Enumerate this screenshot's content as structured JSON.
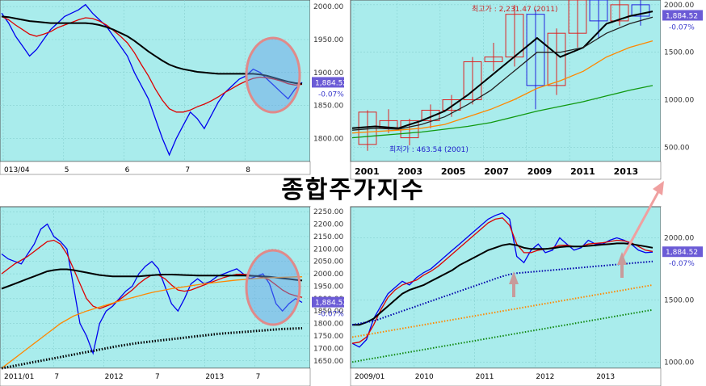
{
  "title": "종합주가지수",
  "colors": {
    "plot_bg": "#a9ecec",
    "axis_bg": "#ffffff",
    "badge": "#6b5bd6",
    "badge_text": "#ffffff",
    "pct_text": "#3b3bcc"
  },
  "chart_data": [
    {
      "type": "line",
      "id": "top-left",
      "x_labels": [
        "013/04",
        "5",
        "6",
        "7",
        "8"
      ],
      "y_ticks": [
        "2000.00",
        "1950.00",
        "1900.00",
        "1850.00",
        "1800.00"
      ],
      "ylim": [
        1765,
        2010
      ],
      "last_value_label": "1,884.52",
      "change_label": "-0.07%",
      "series": [
        {
          "color": "#0000ee",
          "values": [
            1990,
            1975,
            1955,
            1940,
            1925,
            1935,
            1950,
            1965,
            1975,
            1985,
            1990,
            1995,
            2003,
            1990,
            1980,
            1970,
            1955,
            1940,
            1925,
            1900,
            1880,
            1860,
            1830,
            1800,
            1775,
            1800,
            1820,
            1840,
            1830,
            1815,
            1835,
            1855,
            1870,
            1880,
            1890,
            1895,
            1905,
            1900,
            1890,
            1880,
            1870,
            1860,
            1875,
            1885
          ]
        },
        {
          "color": "#dd0000",
          "values": [
            1985,
            1980,
            1972,
            1965,
            1958,
            1955,
            1958,
            1962,
            1968,
            1972,
            1976,
            1980,
            1983,
            1982,
            1978,
            1972,
            1964,
            1955,
            1945,
            1930,
            1912,
            1895,
            1875,
            1858,
            1845,
            1840,
            1840,
            1843,
            1848,
            1852,
            1857,
            1863,
            1870,
            1876,
            1882,
            1887,
            1891,
            1893,
            1892,
            1890,
            1887,
            1883,
            1881,
            1882
          ]
        },
        {
          "color": "#000000",
          "values": [
            1985,
            1984,
            1982,
            1980,
            1978,
            1977,
            1976,
            1975,
            1975,
            1975,
            1975,
            1975,
            1975,
            1974,
            1972,
            1969,
            1965,
            1960,
            1955,
            1948,
            1940,
            1932,
            1925,
            1918,
            1912,
            1908,
            1905,
            1903,
            1901,
            1900,
            1899,
            1898,
            1898,
            1898,
            1898,
            1898,
            1898,
            1897,
            1895,
            1892,
            1889,
            1886,
            1884,
            1883
          ]
        }
      ]
    },
    {
      "type": "candlestick",
      "id": "top-right",
      "x_labels": [
        "2001",
        "2003",
        "2005",
        "2007",
        "2009",
        "2011",
        "2013"
      ],
      "y_ticks": [
        "2000.00",
        "1500.00",
        "1000.00",
        "500.00"
      ],
      "ylim": [
        350,
        2050
      ],
      "last_value_label": "1,884.52",
      "change_label": "-0.07%",
      "annotations": [
        "최고가 : 2,231.47 (2011)",
        "최저가 : 463.54 (2001)"
      ],
      "candles": [
        {
          "o": 530,
          "c": 870,
          "h": 890,
          "l": 463
        },
        {
          "o": 700,
          "c": 780,
          "h": 900,
          "l": 650
        },
        {
          "o": 600,
          "c": 780,
          "h": 800,
          "l": 520
        },
        {
          "o": 780,
          "c": 890,
          "h": 950,
          "l": 700
        },
        {
          "o": 890,
          "c": 1000,
          "h": 1050,
          "l": 820
        },
        {
          "o": 1000,
          "c": 1400,
          "h": 1450,
          "l": 950
        },
        {
          "o": 1400,
          "c": 1450,
          "h": 1600,
          "l": 1300
        },
        {
          "o": 1450,
          "c": 1900,
          "h": 2000,
          "l": 1350
        },
        {
          "o": 1900,
          "c": 1150,
          "h": 1950,
          "l": 900
        },
        {
          "o": 1150,
          "c": 1700,
          "h": 1750,
          "l": 1050
        },
        {
          "o": 1700,
          "c": 2050,
          "h": 2100,
          "l": 1550
        },
        {
          "o": 2050,
          "c": 1830,
          "h": 2231,
          "l": 1650
        },
        {
          "o": 1830,
          "c": 2000,
          "h": 2050,
          "l": 1780
        },
        {
          "o": 2000,
          "c": 1880,
          "h": 2050,
          "l": 1780
        }
      ],
      "series": [
        {
          "color": "#000000",
          "values": [
            700,
            720,
            700,
            780,
            880,
            1050,
            1250,
            1450,
            1650,
            1450,
            1550,
            1800,
            1880,
            1930
          ]
        },
        {
          "color": "#222222",
          "values": [
            680,
            700,
            690,
            740,
            820,
            950,
            1100,
            1300,
            1500,
            1500,
            1550,
            1700,
            1800,
            1870
          ]
        },
        {
          "color": "#ff8800",
          "values": [
            650,
            665,
            680,
            700,
            740,
            820,
            900,
            1000,
            1120,
            1200,
            1300,
            1450,
            1550,
            1620
          ]
        },
        {
          "color": "#119911",
          "values": [
            600,
            620,
            640,
            660,
            690,
            720,
            760,
            820,
            880,
            930,
            980,
            1040,
            1100,
            1150
          ]
        }
      ]
    },
    {
      "type": "line",
      "id": "bottom-left",
      "x_labels": [
        "2011/01",
        "7",
        "2012",
        "7",
        "2013",
        "7"
      ],
      "y_ticks": [
        "2250.00",
        "2200.00",
        "2150.00",
        "2100.00",
        "2050.00",
        "2000.00",
        "1950.00",
        "1900.00",
        "1850.00",
        "1800.00",
        "1750.00",
        "1700.00",
        "1650.00"
      ],
      "ylim": [
        1620,
        2270
      ],
      "last_value_label": "1,884.52",
      "change_label": "-0.07%",
      "series": [
        {
          "color": "#0000ee",
          "values": [
            2080,
            2060,
            2050,
            2040,
            2080,
            2120,
            2180,
            2200,
            2150,
            2130,
            2100,
            1950,
            1800,
            1750,
            1680,
            1800,
            1850,
            1870,
            1900,
            1930,
            1950,
            2000,
            2030,
            2050,
            2020,
            1950,
            1880,
            1850,
            1900,
            1960,
            1980,
            1960,
            1970,
            1990,
            2000,
            2010,
            2020,
            2000,
            1980,
            1990,
            2000,
            1960,
            1880,
            1850,
            1880,
            1900,
            1885
          ]
        },
        {
          "color": "#dd0000",
          "values": [
            2000,
            2020,
            2040,
            2055,
            2070,
            2090,
            2110,
            2130,
            2135,
            2120,
            2080,
            2020,
            1960,
            1900,
            1870,
            1860,
            1870,
            1880,
            1895,
            1915,
            1935,
            1960,
            1980,
            1995,
            1995,
            1980,
            1955,
            1935,
            1930,
            1935,
            1945,
            1955,
            1965,
            1975,
            1985,
            1992,
            1998,
            1998,
            1995,
            1990,
            1985,
            1975,
            1955,
            1935,
            1920,
            1912,
            1905
          ]
        },
        {
          "color": "#000000",
          "values": [
            1940,
            1950,
            1960,
            1970,
            1980,
            1990,
            2000,
            2010,
            2015,
            2018,
            2018,
            2015,
            2010,
            2005,
            2000,
            1995,
            1992,
            1990,
            1990,
            1990,
            1990,
            1990,
            1992,
            1994,
            1996,
            1997,
            1997,
            1996,
            1995,
            1994,
            1993,
            1993,
            1993,
            1993,
            1993,
            1993,
            1993,
            1993,
            1992,
            1991,
            1990,
            1988,
            1985,
            1982,
            1979,
            1976,
            1973
          ]
        },
        {
          "color": "#ff8800",
          "values": [
            1620,
            1640,
            1660,
            1680,
            1700,
            1720,
            1740,
            1760,
            1780,
            1800,
            1815,
            1830,
            1840,
            1850,
            1858,
            1866,
            1874,
            1882,
            1890,
            1897,
            1904,
            1911,
            1918,
            1925,
            1930,
            1935,
            1940,
            1944,
            1948,
            1952,
            1956,
            1960,
            1963,
            1966,
            1969,
            1972,
            1975,
            1977,
            1979,
            1981,
            1983,
            1984,
            1985,
            1986,
            1987,
            1988,
            1988
          ]
        },
        {
          "color": "#000000",
          "dotted": true,
          "values": [
            1620,
            1625,
            1630,
            1635,
            1640,
            1645,
            1650,
            1655,
            1660,
            1665,
            1670,
            1675,
            1680,
            1685,
            1690,
            1695,
            1700,
            1705,
            1710,
            1714,
            1718,
            1722,
            1725,
            1728,
            1731,
            1734,
            1737,
            1740,
            1743,
            1746,
            1749,
            1752,
            1755,
            1758,
            1760,
            1762,
            1764,
            1766,
            1768,
            1770,
            1772,
            1774,
            1776,
            1778,
            1779,
            1780,
            1781
          ]
        }
      ]
    },
    {
      "type": "line",
      "id": "bottom-right",
      "x_labels": [
        "2009/01",
        "2010",
        "2011",
        "2012",
        "2013"
      ],
      "y_ticks": [
        "2000.00",
        "1500.00",
        "1000.00"
      ],
      "ylim": [
        950,
        2250
      ],
      "last_value_label": "1,884.52",
      "change_label": "-0.07%",
      "series": [
        {
          "color": "#0000ee",
          "values": [
            1150,
            1120,
            1180,
            1350,
            1450,
            1550,
            1600,
            1650,
            1620,
            1680,
            1720,
            1750,
            1800,
            1850,
            1900,
            1950,
            2000,
            2050,
            2100,
            2150,
            2180,
            2200,
            2150,
            1850,
            1800,
            1900,
            1950,
            1880,
            1900,
            2000,
            1950,
            1900,
            1920,
            1980,
            1950,
            1950,
            1980,
            2000,
            1980,
            1950,
            1900,
            1880,
            1885
          ]
        },
        {
          "color": "#dd0000",
          "values": [
            1150,
            1160,
            1200,
            1300,
            1420,
            1520,
            1580,
            1620,
            1640,
            1660,
            1700,
            1730,
            1770,
            1820,
            1870,
            1920,
            1970,
            2020,
            2070,
            2120,
            2150,
            2160,
            2100,
            1950,
            1880,
            1880,
            1900,
            1910,
            1920,
            1940,
            1940,
            1930,
            1930,
            1950,
            1955,
            1960,
            1970,
            1980,
            1975,
            1960,
            1930,
            1900,
            1890
          ]
        },
        {
          "color": "#000000",
          "values": [
            1300,
            1300,
            1320,
            1350,
            1400,
            1450,
            1500,
            1550,
            1580,
            1600,
            1620,
            1650,
            1680,
            1710,
            1740,
            1780,
            1810,
            1840,
            1870,
            1900,
            1920,
            1940,
            1950,
            1940,
            1920,
            1910,
            1910,
            1910,
            1915,
            1925,
            1930,
            1930,
            1930,
            1935,
            1940,
            1945,
            1950,
            1955,
            1955,
            1950,
            1940,
            1930,
            1920
          ]
        },
        {
          "color": "#0000aa",
          "dotted": true,
          "values": [
            1300,
            1310,
            1320,
            1330,
            1350,
            1370,
            1390,
            1410,
            1430,
            1450,
            1470,
            1490,
            1510,
            1530,
            1550,
            1570,
            1590,
            1610,
            1630,
            1650,
            1670,
            1690,
            1705,
            1715,
            1720,
            1725,
            1730,
            1735,
            1740,
            1745,
            1750,
            1755,
            1760,
            1765,
            1770,
            1775,
            1780,
            1785,
            1790,
            1795,
            1800,
            1805,
            1810
          ]
        },
        {
          "color": "#ff8800",
          "dotted": true,
          "values": [
            1200,
            1210,
            1220,
            1230,
            1240,
            1250,
            1260,
            1270,
            1280,
            1290,
            1300,
            1310,
            1320,
            1330,
            1340,
            1350,
            1360,
            1370,
            1380,
            1390,
            1400,
            1410,
            1420,
            1430,
            1440,
            1450,
            1460,
            1470,
            1480,
            1490,
            1500,
            1510,
            1520,
            1530,
            1540,
            1550,
            1560,
            1570,
            1580,
            1590,
            1600,
            1610,
            1620
          ]
        },
        {
          "color": "#118811",
          "dotted": true,
          "values": [
            1000,
            1010,
            1020,
            1030,
            1040,
            1050,
            1060,
            1070,
            1080,
            1090,
            1100,
            1110,
            1120,
            1130,
            1140,
            1150,
            1160,
            1170,
            1180,
            1190,
            1200,
            1210,
            1220,
            1230,
            1240,
            1250,
            1260,
            1270,
            1280,
            1290,
            1300,
            1310,
            1320,
            1330,
            1340,
            1350,
            1360,
            1370,
            1380,
            1390,
            1400,
            1410,
            1420
          ]
        }
      ]
    }
  ]
}
